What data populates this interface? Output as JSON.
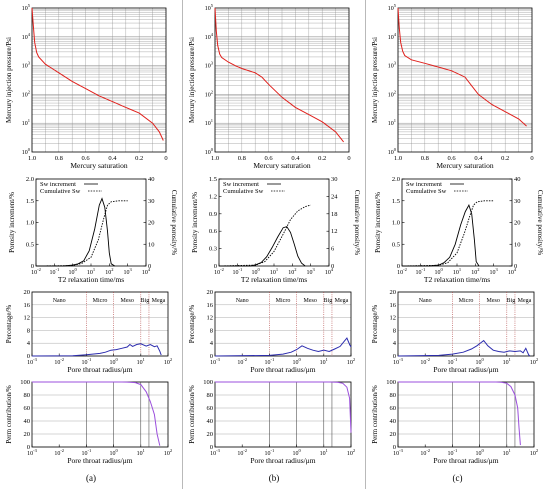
{
  "colors": {
    "red": "#e0201c",
    "blue": "#2c2cae",
    "purple": "#9b4fdc",
    "grid": "#8a8a8a",
    "dotted": "#b04040"
  },
  "labels": {
    "mip_ylabel": "Mercury injection pressure/Psi",
    "mip_xlabel": "Mercury saturation",
    "nmr_ylabel_left": "Porosity increment/%",
    "nmr_ylabel_right": "Cumulative porosity/%",
    "nmr_xlabel": "T2  relaxation  time/ms",
    "nmr_legend": [
      "Sw increment",
      "Cumulative Sw"
    ],
    "pct_ylabel": "Percentage/%",
    "pct_xlabel": "Pore throat radius/μm",
    "pore_classes": [
      "Nano",
      "Micro",
      "Meso",
      "Big",
      "Mega"
    ],
    "perm_ylabel": "Perm contribution/%",
    "perm_xlabel": "Pore throat radius/μm"
  },
  "ticks": {
    "mip_x": [
      "1.0",
      "0.8",
      "0.6",
      "0.4",
      "0.2",
      "0"
    ],
    "mip_y_exp": [
      "0",
      "1",
      "2",
      "3",
      "4",
      "5"
    ],
    "t2_x_exp": [
      "-2",
      "-1",
      "0",
      "1",
      "2",
      "3",
      "4"
    ],
    "r_x_exp": [
      "-3",
      "-2",
      "-1",
      "0",
      "1",
      "2"
    ],
    "pct_y": [
      "0",
      "4",
      "8",
      "12",
      "16",
      "20"
    ],
    "perm_y": [
      "0",
      "20",
      "40",
      "60",
      "80",
      "100"
    ]
  },
  "chart_data": [
    {
      "panel": "(a)",
      "mip": {
        "type": "line",
        "series": [
          {
            "values": [
              [
                1.0,
                5.0
              ],
              [
                0.99,
                4.4
              ],
              [
                0.98,
                3.8
              ],
              [
                0.965,
                3.45
              ],
              [
                0.95,
                3.3
              ],
              [
                0.9,
                3.05
              ],
              [
                0.85,
                2.9
              ],
              [
                0.8,
                2.75
              ],
              [
                0.7,
                2.45
              ],
              [
                0.6,
                2.2
              ],
              [
                0.5,
                1.95
              ],
              [
                0.4,
                1.75
              ],
              [
                0.3,
                1.55
              ],
              [
                0.2,
                1.35
              ],
              [
                0.1,
                1.0
              ],
              [
                0.05,
                0.7
              ],
              [
                0.02,
                0.4
              ]
            ]
          }
        ]
      },
      "nmr": {
        "type": "line",
        "y_left_lim": [
          0,
          2.0
        ],
        "y_left_ticks": [
          "0",
          "0.5",
          "1.0",
          "1.5",
          "2.0"
        ],
        "y_right_lim": [
          0,
          40
        ],
        "y_right_ticks": [
          "0",
          "10",
          "20",
          "30",
          "40"
        ],
        "series": [
          {
            "name": "Sw increment",
            "values": [
              [
                -2,
                0
              ],
              [
                -0.5,
                0
              ],
              [
                0,
                0.02
              ],
              [
                0.3,
                0.05
              ],
              [
                0.6,
                0.12
              ],
              [
                0.9,
                0.35
              ],
              [
                1.2,
                0.85
              ],
              [
                1.45,
                1.4
              ],
              [
                1.6,
                1.55
              ],
              [
                1.75,
                1.35
              ],
              [
                1.9,
                0.8
              ],
              [
                2.0,
                0.3
              ],
              [
                2.1,
                0.05
              ],
              [
                2.3,
                0
              ]
            ]
          },
          {
            "name": "Cumulative Sw",
            "values": [
              [
                -2,
                0
              ],
              [
                0,
                0.2
              ],
              [
                0.5,
                1.2
              ],
              [
                1.0,
                4
              ],
              [
                1.4,
                12
              ],
              [
                1.7,
                22
              ],
              [
                1.9,
                28
              ],
              [
                2.1,
                29.5
              ],
              [
                2.5,
                30
              ],
              [
                3.0,
                30
              ]
            ]
          }
        ]
      },
      "pct": {
        "type": "line",
        "values": [
          [
            -3,
            0
          ],
          [
            -1.5,
            0.1
          ],
          [
            -1,
            0.4
          ],
          [
            -0.5,
            0.8
          ],
          [
            -0.3,
            1.2
          ],
          [
            -0.1,
            1.8
          ],
          [
            0.1,
            2.0
          ],
          [
            0.3,
            2.4
          ],
          [
            0.5,
            2.8
          ],
          [
            0.6,
            3.6
          ],
          [
            0.7,
            3.0
          ],
          [
            0.85,
            3.6
          ],
          [
            1.0,
            3.8
          ],
          [
            1.2,
            3.1
          ],
          [
            1.35,
            3.6
          ],
          [
            1.5,
            2.9
          ],
          [
            1.6,
            3.2
          ],
          [
            1.7,
            1.5
          ],
          [
            1.75,
            0.3
          ]
        ]
      },
      "perm": {
        "type": "line",
        "values": [
          [
            -3,
            100
          ],
          [
            0.3,
            100
          ],
          [
            0.6,
            99.7
          ],
          [
            0.8,
            99
          ],
          [
            1.0,
            96
          ],
          [
            1.2,
            85
          ],
          [
            1.35,
            70
          ],
          [
            1.5,
            50
          ],
          [
            1.6,
            20
          ],
          [
            1.7,
            2
          ]
        ]
      }
    },
    {
      "panel": "(b)",
      "mip": {
        "type": "line",
        "series": [
          {
            "values": [
              [
                1.0,
                5.0
              ],
              [
                0.99,
                4.2
              ],
              [
                0.98,
                3.7
              ],
              [
                0.965,
                3.4
              ],
              [
                0.95,
                3.28
              ],
              [
                0.9,
                3.12
              ],
              [
                0.85,
                3.0
              ],
              [
                0.8,
                2.9
              ],
              [
                0.7,
                2.75
              ],
              [
                0.65,
                2.6
              ],
              [
                0.6,
                2.35
              ],
              [
                0.5,
                1.9
              ],
              [
                0.4,
                1.55
              ],
              [
                0.3,
                1.3
              ],
              [
                0.2,
                1.05
              ],
              [
                0.1,
                0.7
              ],
              [
                0.04,
                0.35
              ]
            ]
          }
        ]
      },
      "nmr": {
        "type": "line",
        "y_left_lim": [
          0,
          1.5
        ],
        "y_left_ticks": [
          "0",
          "0.3",
          "0.6",
          "0.9",
          "1.2",
          "1.5"
        ],
        "y_right_lim": [
          0,
          30
        ],
        "y_right_ticks": [
          "0",
          "6",
          "12",
          "18",
          "24",
          "30"
        ],
        "series": [
          {
            "name": "Sw increment",
            "values": [
              [
                -2,
                0
              ],
              [
                -0.3,
                0
              ],
              [
                0,
                0.02
              ],
              [
                0.3,
                0.06
              ],
              [
                0.6,
                0.16
              ],
              [
                0.9,
                0.32
              ],
              [
                1.2,
                0.5
              ],
              [
                1.5,
                0.66
              ],
              [
                1.7,
                0.68
              ],
              [
                1.9,
                0.58
              ],
              [
                2.1,
                0.38
              ],
              [
                2.3,
                0.17
              ],
              [
                2.5,
                0.05
              ],
              [
                2.7,
                0
              ]
            ]
          },
          {
            "name": "Cumulative Sw",
            "values": [
              [
                -2,
                0
              ],
              [
                0,
                0.3
              ],
              [
                0.5,
                1.5
              ],
              [
                1.0,
                5
              ],
              [
                1.5,
                11
              ],
              [
                1.9,
                16
              ],
              [
                2.3,
                19
              ],
              [
                2.7,
                20.5
              ],
              [
                3.0,
                21
              ]
            ]
          }
        ]
      },
      "pct": {
        "type": "line",
        "values": [
          [
            -3,
            0
          ],
          [
            -1,
            0.2
          ],
          [
            -0.5,
            0.6
          ],
          [
            -0.2,
            1.2
          ],
          [
            0,
            2.0
          ],
          [
            0.2,
            3.2
          ],
          [
            0.4,
            2.4
          ],
          [
            0.6,
            1.8
          ],
          [
            0.8,
            1.4
          ],
          [
            1.0,
            1.8
          ],
          [
            1.2,
            1.4
          ],
          [
            1.4,
            2.2
          ],
          [
            1.6,
            3.0
          ],
          [
            1.75,
            4.6
          ],
          [
            1.85,
            5.6
          ],
          [
            1.95,
            3.6
          ],
          [
            2.0,
            2.8
          ]
        ]
      },
      "perm": {
        "type": "line",
        "values": [
          [
            -3,
            100
          ],
          [
            1.2,
            100
          ],
          [
            1.5,
            99.6
          ],
          [
            1.7,
            98
          ],
          [
            1.85,
            92
          ],
          [
            1.95,
            75
          ],
          [
            2.0,
            22
          ]
        ]
      }
    },
    {
      "panel": "(c)",
      "mip": {
        "type": "line",
        "series": [
          {
            "values": [
              [
                1.0,
                5.0
              ],
              [
                0.99,
                4.3
              ],
              [
                0.98,
                3.8
              ],
              [
                0.965,
                3.5
              ],
              [
                0.95,
                3.35
              ],
              [
                0.9,
                3.2
              ],
              [
                0.8,
                3.08
              ],
              [
                0.7,
                2.95
              ],
              [
                0.6,
                2.82
              ],
              [
                0.5,
                2.6
              ],
              [
                0.45,
                2.3
              ],
              [
                0.4,
                2.0
              ],
              [
                0.3,
                1.65
              ],
              [
                0.2,
                1.4
              ],
              [
                0.1,
                1.15
              ],
              [
                0.04,
                0.9
              ]
            ]
          }
        ]
      },
      "nmr": {
        "type": "line",
        "y_left_lim": [
          0,
          2.0
        ],
        "y_left_ticks": [
          "0",
          "0.5",
          "1.0",
          "1.5",
          "2.0"
        ],
        "y_right_lim": [
          0,
          40
        ],
        "y_right_ticks": [
          "0",
          "10",
          "20",
          "30",
          "40"
        ],
        "series": [
          {
            "name": "Sw increment",
            "values": [
              [
                -2,
                0
              ],
              [
                -0.5,
                0
              ],
              [
                0,
                0.02
              ],
              [
                0.3,
                0.08
              ],
              [
                0.6,
                0.2
              ],
              [
                0.9,
                0.5
              ],
              [
                1.2,
                0.95
              ],
              [
                1.45,
                1.25
              ],
              [
                1.65,
                1.4
              ],
              [
                1.8,
                1.2
              ],
              [
                1.95,
                0.6
              ],
              [
                2.05,
                0.1
              ],
              [
                2.2,
                0
              ]
            ]
          },
          {
            "name": "Cumulative Sw",
            "values": [
              [
                -2,
                0
              ],
              [
                0,
                0.3
              ],
              [
                0.5,
                1.5
              ],
              [
                1.0,
                6
              ],
              [
                1.4,
                15
              ],
              [
                1.7,
                23
              ],
              [
                1.9,
                28
              ],
              [
                2.1,
                29.5
              ],
              [
                2.5,
                30
              ],
              [
                3.0,
                30
              ]
            ]
          }
        ]
      },
      "pct": {
        "type": "line",
        "values": [
          [
            -3,
            0
          ],
          [
            -1.5,
            0.2
          ],
          [
            -1,
            0.6
          ],
          [
            -0.6,
            1.2
          ],
          [
            -0.3,
            2.2
          ],
          [
            -0.1,
            3.2
          ],
          [
            0.05,
            4.2
          ],
          [
            0.15,
            4.8
          ],
          [
            0.3,
            3.2
          ],
          [
            0.5,
            1.8
          ],
          [
            0.7,
            1.4
          ],
          [
            0.9,
            1.2
          ],
          [
            1.1,
            1.6
          ],
          [
            1.3,
            1.4
          ],
          [
            1.5,
            1.6
          ],
          [
            1.6,
            1.0
          ],
          [
            1.7,
            2.4
          ],
          [
            1.8,
            0.4
          ],
          [
            1.85,
            0
          ]
        ]
      },
      "perm": {
        "type": "line",
        "values": [
          [
            -3,
            100
          ],
          [
            0.6,
            100
          ],
          [
            0.8,
            99.5
          ],
          [
            1.0,
            98
          ],
          [
            1.15,
            93
          ],
          [
            1.3,
            80
          ],
          [
            1.4,
            60
          ],
          [
            1.45,
            30
          ],
          [
            1.5,
            3
          ]
        ]
      }
    }
  ]
}
